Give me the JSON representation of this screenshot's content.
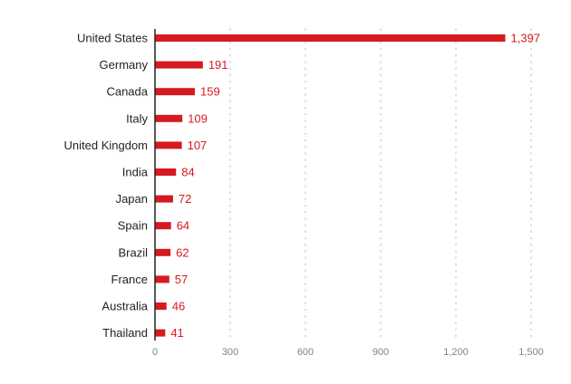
{
  "chart_data": {
    "type": "bar",
    "orientation": "horizontal",
    "categories": [
      "United States",
      "Germany",
      "Canada",
      "Italy",
      "United Kingdom",
      "India",
      "Japan",
      "Spain",
      "Brazil",
      "France",
      "Australia",
      "Thailand"
    ],
    "values": [
      1397,
      191,
      159,
      109,
      107,
      84,
      72,
      64,
      62,
      57,
      46,
      41
    ],
    "value_labels": [
      "1,397",
      "191",
      "159",
      "109",
      "107",
      "84",
      "72",
      "64",
      "62",
      "57",
      "46",
      "41"
    ],
    "title": "",
    "xlabel": "",
    "ylabel": "",
    "xlim": [
      0,
      1500
    ],
    "x_ticks": [
      0,
      300,
      600,
      900,
      1200,
      1500
    ],
    "x_tick_labels": [
      "0",
      "300",
      "600",
      "900",
      "1,200",
      "1,500"
    ],
    "grid": "vertical dotted",
    "legend": "none",
    "colors": {
      "bar": "#d71920",
      "value_label": "#d71920",
      "category_label": "#222222",
      "tick_label": "#7a8590",
      "grid": "#b9c4d1",
      "axis": "#222222"
    }
  }
}
